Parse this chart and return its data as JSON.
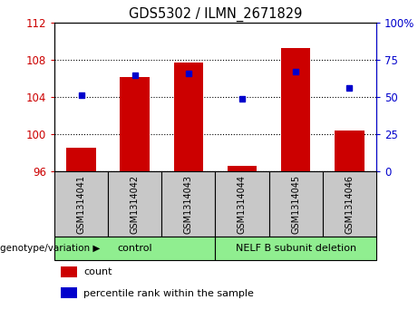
{
  "title": "GDS5302 / ILMN_2671829",
  "samples": [
    "GSM1314041",
    "GSM1314042",
    "GSM1314043",
    "GSM1314044",
    "GSM1314045",
    "GSM1314046"
  ],
  "count_values": [
    98.5,
    106.2,
    107.7,
    96.6,
    109.3,
    100.4
  ],
  "percentile_values": [
    51,
    65,
    66,
    49,
    67,
    56
  ],
  "ylim_left": [
    96,
    112
  ],
  "ylim_right": [
    0,
    100
  ],
  "yticks_left": [
    96,
    100,
    104,
    108,
    112
  ],
  "yticks_right": [
    0,
    25,
    50,
    75,
    100
  ],
  "ytick_labels_right": [
    "0",
    "25",
    "50",
    "75",
    "100%"
  ],
  "bar_color": "#cc0000",
  "dot_color": "#0000cc",
  "bar_width": 0.55,
  "genotype_label": "genotype/variation",
  "legend_count_label": "count",
  "legend_percentile_label": "percentile rank within the sample",
  "tick_color_left": "#cc0000",
  "tick_color_right": "#0000cc",
  "sample_bg": "#c8c8c8",
  "group_bg": "#90ee90",
  "ctrl_label": "control",
  "nelf_label": "NELF B subunit deletion"
}
